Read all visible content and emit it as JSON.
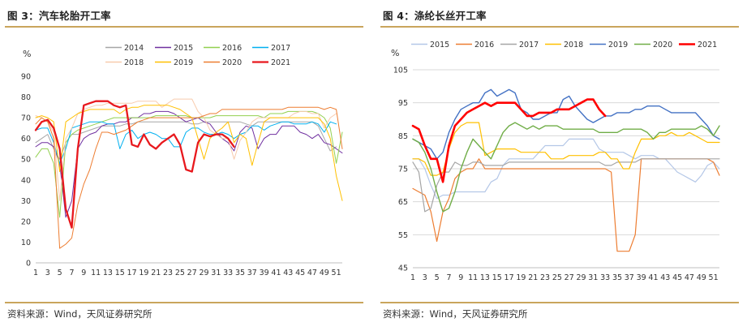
{
  "figures": [
    {
      "title": "图 3：汽车轮胎开工率",
      "source": "资料来源：Wind，天风证券研究所"
    },
    {
      "title": "图 4：涤纶长丝开工率",
      "source": "资料来源：Wind，天风证券研究所"
    }
  ],
  "chart_data": [
    {
      "type": "line",
      "title": "汽车轮胎开工率",
      "ylabel": "%",
      "xlabel": "",
      "ylim": [
        0,
        90
      ],
      "yticks": [
        0,
        10,
        20,
        30,
        40,
        50,
        60,
        70,
        80,
        90
      ],
      "grid": false,
      "legend": "top",
      "x": [
        1,
        2,
        3,
        4,
        5,
        6,
        7,
        8,
        9,
        10,
        11,
        12,
        13,
        14,
        15,
        16,
        17,
        18,
        19,
        20,
        21,
        22,
        23,
        24,
        25,
        26,
        27,
        28,
        29,
        30,
        31,
        32,
        33,
        34,
        35,
        36,
        37,
        38,
        39,
        40,
        41,
        42,
        43,
        44,
        45,
        46,
        47,
        48,
        49,
        50,
        51,
        52
      ],
      "xticks": [
        1,
        3,
        5,
        7,
        9,
        11,
        13,
        15,
        17,
        19,
        21,
        23,
        25,
        27,
        29,
        31,
        33,
        35,
        37,
        39,
        41,
        43,
        45,
        47,
        49,
        51
      ],
      "series": [
        {
          "name": "2014",
          "color": "#a6a6a6",
          "width": 1,
          "values": [
            58,
            60,
            62,
            55,
            50,
            58,
            62,
            62,
            63,
            64,
            65,
            66,
            66,
            66,
            66,
            67,
            67,
            68,
            68,
            68,
            68,
            68,
            68,
            68,
            68,
            68,
            67,
            67,
            68,
            68,
            68,
            68,
            68,
            68,
            68,
            67,
            66,
            68,
            68,
            68,
            68,
            68,
            68,
            68,
            68,
            68,
            68,
            66,
            60,
            54,
            56,
            null
          ]
        },
        {
          "name": "2015",
          "color": "#7030a0",
          "width": 1,
          "values": [
            56,
            58,
            58,
            56,
            48,
            22,
            30,
            55,
            60,
            62,
            63,
            66,
            67,
            67,
            68,
            68,
            70,
            70,
            72,
            72,
            73,
            73,
            73,
            72,
            70,
            68,
            69,
            70,
            68,
            67,
            63,
            60,
            58,
            54,
            63,
            66,
            65,
            55,
            60,
            62,
            62,
            66,
            66,
            66,
            63,
            62,
            60,
            62,
            58,
            57,
            55,
            53
          ]
        },
        {
          "name": "2016",
          "color": "#92d050",
          "width": 1,
          "values": [
            51,
            55,
            55,
            48,
            22,
            58,
            62,
            64,
            65,
            66,
            67,
            68,
            69,
            70,
            70,
            70,
            70,
            70,
            70,
            70,
            71,
            71,
            71,
            71,
            71,
            71,
            70,
            70,
            70,
            70,
            71,
            71,
            71,
            71,
            71,
            71,
            71,
            71,
            70,
            72,
            72,
            72,
            73,
            73,
            73,
            73,
            73,
            72,
            70,
            65,
            48,
            63
          ]
        },
        {
          "name": "2017",
          "color": "#00b0f0",
          "width": 1,
          "values": [
            64,
            65,
            65,
            58,
            48,
            55,
            65,
            66,
            67,
            68,
            68,
            68,
            67,
            67,
            55,
            62,
            64,
            60,
            62,
            63,
            62,
            60,
            60,
            56,
            56,
            63,
            65,
            65,
            63,
            62,
            62,
            63,
            62,
            60,
            62,
            63,
            66,
            66,
            64,
            66,
            67,
            68,
            68,
            67,
            67,
            67,
            68,
            67,
            63,
            68,
            67,
            null
          ]
        },
        {
          "name": "2018",
          "color": "#f8cbad",
          "width": 1,
          "values": [
            71,
            70,
            68,
            63,
            30,
            60,
            65,
            72,
            74,
            75,
            76,
            76,
            77,
            77,
            77,
            77,
            77,
            78,
            78,
            78,
            78,
            75,
            77,
            79,
            79,
            79,
            79,
            73,
            70,
            64,
            62,
            60,
            60,
            50,
            59,
            63,
            68,
            70,
            70,
            70,
            70,
            70,
            70,
            72,
            73,
            73,
            72,
            72,
            65,
            70,
            72,
            null
          ]
        },
        {
          "name": "2019",
          "color": "#ffc000",
          "width": 1,
          "values": [
            70,
            71,
            70,
            68,
            44,
            68,
            70,
            72,
            73,
            74,
            74,
            74,
            74,
            74,
            72,
            74,
            75,
            75,
            76,
            76,
            76,
            76,
            76,
            75,
            74,
            72,
            70,
            60,
            50,
            60,
            63,
            65,
            68,
            58,
            62,
            60,
            47,
            58,
            68,
            70,
            70,
            70,
            70,
            70,
            70,
            70,
            70,
            70,
            67,
            60,
            42,
            30
          ]
        },
        {
          "name": "2020",
          "color": "#ed7d31",
          "width": 1,
          "values": [
            67,
            70,
            68,
            60,
            7,
            9,
            12,
            28,
            38,
            45,
            55,
            63,
            63,
            62,
            63,
            64,
            66,
            68,
            69,
            70,
            70,
            70,
            70,
            70,
            70,
            70,
            70,
            70,
            71,
            72,
            72,
            74,
            74,
            74,
            74,
            74,
            74,
            74,
            74,
            74,
            74,
            74,
            75,
            75,
            75,
            75,
            75,
            75,
            74,
            75,
            74,
            55
          ]
        },
        {
          "name": "2021",
          "color": "#e8181d",
          "width": 2.3,
          "values": [
            64,
            68,
            69,
            65,
            55,
            26,
            17,
            55,
            76,
            77,
            78,
            78,
            78,
            76,
            75,
            76,
            57,
            56,
            62,
            57,
            55,
            58,
            60,
            62,
            57,
            45,
            44,
            58,
            62,
            61,
            62,
            62,
            60,
            56,
            null,
            null,
            null,
            null,
            null,
            null,
            null,
            null,
            null,
            null,
            null,
            null,
            null,
            null,
            null,
            null,
            null,
            null
          ]
        }
      ]
    },
    {
      "type": "line",
      "title": "涤纶长丝开工率",
      "ylabel": "%",
      "xlabel": "",
      "ylim": [
        45,
        105
      ],
      "yticks": [
        45,
        55,
        65,
        75,
        85,
        95,
        105
      ],
      "grid": true,
      "legend": "top",
      "x": [
        1,
        2,
        3,
        4,
        5,
        6,
        7,
        8,
        9,
        10,
        11,
        12,
        13,
        14,
        15,
        16,
        17,
        18,
        19,
        20,
        21,
        22,
        23,
        24,
        25,
        26,
        27,
        28,
        29,
        30,
        31,
        32,
        33,
        34,
        35,
        36,
        37,
        38,
        39,
        40,
        41,
        42,
        43,
        44,
        45,
        46,
        47,
        48,
        49,
        50,
        51,
        52
      ],
      "xticks": [
        1,
        3,
        5,
        7,
        9,
        11,
        13,
        15,
        17,
        19,
        21,
        23,
        25,
        27,
        29,
        31,
        33,
        35,
        37,
        39,
        41,
        43,
        45,
        47,
        49,
        51
      ],
      "series": [
        {
          "name": "2015",
          "color": "#b4c7e7",
          "width": 1.2,
          "values": [
            78,
            78,
            75,
            70,
            66,
            67,
            67,
            68,
            68,
            68,
            68,
            68,
            68,
            71,
            72,
            76,
            78,
            78,
            78,
            78,
            78,
            80,
            82,
            82,
            82,
            82,
            84,
            84,
            84,
            84,
            84,
            81,
            80,
            80,
            80,
            80,
            79,
            78,
            79,
            79,
            79,
            78,
            78,
            76,
            74,
            73,
            72,
            71,
            73,
            76,
            77,
            75
          ]
        },
        {
          "name": "2016",
          "color": "#ed7d31",
          "width": 1.2,
          "values": [
            69,
            68,
            67,
            62,
            53,
            62,
            66,
            72,
            74,
            75,
            75,
            78,
            75,
            75,
            75,
            75,
            75,
            75,
            75,
            75,
            75,
            75,
            75,
            75,
            75,
            75,
            75,
            75,
            75,
            75,
            75,
            75,
            75,
            74,
            50,
            50,
            50,
            55,
            78,
            78,
            78,
            78,
            78,
            78,
            78,
            78,
            78,
            78,
            78,
            78,
            77,
            73
          ]
        },
        {
          "name": "2017",
          "color": "#a5a5a5",
          "width": 1.2,
          "values": [
            77,
            74,
            62,
            63,
            70,
            74,
            74,
            77,
            76,
            76,
            77,
            77,
            76,
            76,
            76,
            76,
            77,
            77,
            77,
            77,
            77,
            77,
            77,
            77,
            77,
            77,
            77,
            77,
            77,
            77,
            77,
            77,
            76,
            76,
            77,
            77,
            77,
            77,
            78,
            78,
            78,
            78,
            78,
            78,
            78,
            78,
            78,
            78,
            78,
            78,
            78,
            78
          ]
        },
        {
          "name": "2018",
          "color": "#ffc000",
          "width": 1.2,
          "values": [
            78,
            78,
            77,
            73,
            73,
            74,
            81,
            86,
            88,
            89,
            89,
            89,
            79,
            80,
            81,
            81,
            81,
            81,
            80,
            80,
            80,
            80,
            80,
            78,
            78,
            78,
            79,
            79,
            79,
            79,
            79,
            80,
            80,
            78,
            78,
            75,
            75,
            80,
            84,
            84,
            84,
            85,
            85,
            86,
            85,
            85,
            86,
            85,
            84,
            83,
            83,
            83
          ]
        },
        {
          "name": "2019",
          "color": "#4472c4",
          "width": 1.4,
          "values": [
            84,
            83,
            82,
            81,
            78,
            80,
            86,
            90,
            93,
            94,
            95,
            95,
            98,
            99,
            97,
            98,
            99,
            98,
            93,
            92,
            90,
            90,
            91,
            92,
            92,
            96,
            97,
            94,
            92,
            90,
            89,
            90,
            91,
            91,
            92,
            92,
            92,
            93,
            93,
            94,
            94,
            94,
            93,
            92,
            92,
            92,
            92,
            92,
            90,
            88,
            85,
            84
          ]
        },
        {
          "name": "2020",
          "color": "#70ad47",
          "width": 1.4,
          "values": [
            84,
            83,
            80,
            75,
            68,
            62,
            63,
            68,
            75,
            80,
            84,
            82,
            80,
            78,
            82,
            86,
            88,
            89,
            88,
            87,
            88,
            87,
            88,
            88,
            88,
            87,
            87,
            87,
            87,
            87,
            87,
            86,
            86,
            86,
            86,
            87,
            87,
            87,
            87,
            86,
            84,
            86,
            86,
            87,
            87,
            87,
            87,
            87,
            88,
            87,
            85,
            88
          ]
        },
        {
          "name": "2021",
          "color": "#ff0000",
          "width": 2.6,
          "values": [
            88,
            87,
            82,
            78,
            78,
            71,
            82,
            88,
            90,
            92,
            93,
            94,
            95,
            94,
            95,
            95,
            95,
            95,
            93,
            91,
            91,
            92,
            92,
            92,
            93,
            93,
            93,
            94,
            95,
            96,
            96,
            93,
            91,
            null,
            null,
            null,
            null,
            null,
            null,
            null,
            null,
            null,
            null,
            null,
            null,
            null,
            null,
            null,
            null,
            null,
            null,
            null
          ]
        }
      ]
    }
  ]
}
